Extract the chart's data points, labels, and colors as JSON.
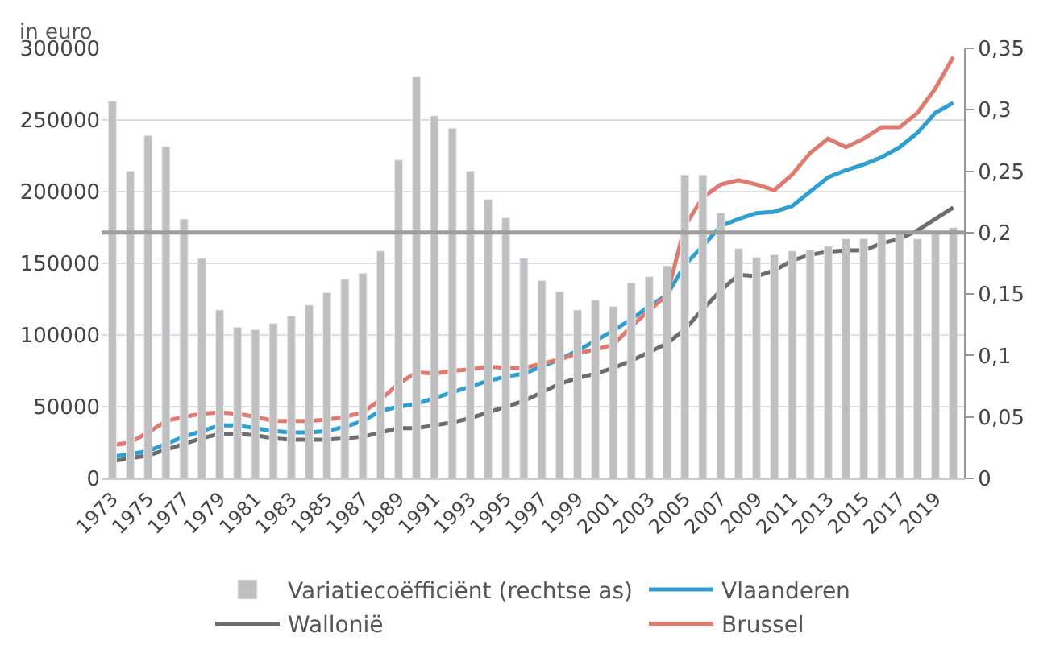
{
  "chart_data": {
    "type": "line",
    "ylabel": "in euro",
    "x": [
      1973,
      1974,
      1975,
      1976,
      1977,
      1978,
      1979,
      1980,
      1981,
      1982,
      1983,
      1984,
      1985,
      1986,
      1987,
      1988,
      1989,
      1990,
      1991,
      1992,
      1993,
      1994,
      1995,
      1996,
      1997,
      1998,
      1999,
      2000,
      2001,
      2002,
      2003,
      2004,
      2005,
      2006,
      2007,
      2008,
      2009,
      2010,
      2011,
      2012,
      2013,
      2014,
      2015,
      2016,
      2017,
      2018,
      2019,
      2020
    ],
    "series": [
      {
        "name": "Variatiecoëfficiënt (rechtse as)",
        "type": "bar",
        "axis": "y2",
        "color": "#bfbfbf",
        "values": [
          0.307,
          0.25,
          0.279,
          0.27,
          0.211,
          0.179,
          0.137,
          0.123,
          0.121,
          0.126,
          0.132,
          0.141,
          0.151,
          0.162,
          0.167,
          0.185,
          0.259,
          0.327,
          0.295,
          0.285,
          0.25,
          0.227,
          0.212,
          0.179,
          0.161,
          0.152,
          0.137,
          0.145,
          0.14,
          0.159,
          0.164,
          0.173,
          0.247,
          0.247,
          0.216,
          0.187,
          0.18,
          0.182,
          0.185,
          0.186,
          0.189,
          0.195,
          0.195,
          0.199,
          0.2,
          0.195,
          0.2,
          0.204
        ]
      },
      {
        "name": "Vlaanderen",
        "color": "#2e9fd0",
        "values": [
          15000,
          17000,
          19000,
          24000,
          29000,
          33000,
          37000,
          37000,
          35000,
          33000,
          32000,
          32000,
          33000,
          36000,
          40000,
          47000,
          50000,
          52000,
          56000,
          60000,
          64000,
          68000,
          71000,
          73000,
          78000,
          83000,
          89000,
          96000,
          103000,
          111000,
          120000,
          128000,
          149000,
          162000,
          176000,
          181000,
          185000,
          186000,
          190000,
          200000,
          210000,
          215000,
          219000,
          224000,
          231000,
          241000,
          255000,
          262000
        ]
      },
      {
        "name": "Wallonië",
        "color": "#6d6d6d",
        "values": [
          12000,
          14000,
          16000,
          20000,
          24000,
          28000,
          31000,
          31000,
          30000,
          28000,
          27000,
          27000,
          27000,
          28000,
          29000,
          32000,
          35000,
          35000,
          37000,
          39000,
          42000,
          46000,
          50000,
          54000,
          60000,
          66000,
          70000,
          73000,
          77000,
          82000,
          88000,
          94000,
          104000,
          118000,
          131000,
          142000,
          141000,
          145000,
          152000,
          156000,
          158000,
          159000,
          159000,
          164000,
          167000,
          173000,
          181000,
          189000
        ]
      },
      {
        "name": "Brussel",
        "color": "#e07a6e",
        "values": [
          23000,
          25000,
          32000,
          40000,
          43000,
          45000,
          46000,
          45000,
          43000,
          40000,
          40000,
          40000,
          41000,
          43000,
          46000,
          55000,
          66000,
          74000,
          73000,
          75000,
          76000,
          78000,
          77000,
          77000,
          80000,
          83000,
          87000,
          90000,
          93000,
          106000,
          117000,
          128000,
          176000,
          196000,
          205000,
          208000,
          205000,
          201000,
          212000,
          227000,
          237000,
          231000,
          237000,
          245000,
          245000,
          255000,
          272000,
          294000
        ]
      }
    ],
    "xlim": [
      1972.4,
      2020.6
    ],
    "xticks": [
      1973,
      1975,
      1977,
      1979,
      1981,
      1983,
      1985,
      1987,
      1989,
      1991,
      1993,
      1995,
      1997,
      1999,
      2001,
      2003,
      2005,
      2007,
      2009,
      2011,
      2013,
      2015,
      2017,
      2019
    ],
    "ylim": [
      0,
      300000
    ],
    "yticks": [
      0,
      50000,
      100000,
      150000,
      200000,
      250000,
      300000
    ],
    "y2lim": [
      0,
      0.35
    ],
    "y2ticks": [
      0,
      {
        "value": 0.05,
        "label": "0,05"
      },
      {
        "value": 0.1,
        "label": "0,1"
      },
      {
        "value": 0.15,
        "label": "0,15"
      },
      {
        "value": 0.2,
        "label": "0,2"
      },
      {
        "value": 0.25,
        "label": "0,25"
      },
      {
        "value": 0.3,
        "label": "0,3"
      },
      {
        "value": 0.35,
        "label": "0,35"
      }
    ],
    "ref_lines": [
      {
        "axis": "y2",
        "value": 0.2,
        "color": "#9e9e9e"
      }
    ],
    "grid": "y",
    "legend": "bottom",
    "marker": "none",
    "line_style": "solid"
  }
}
